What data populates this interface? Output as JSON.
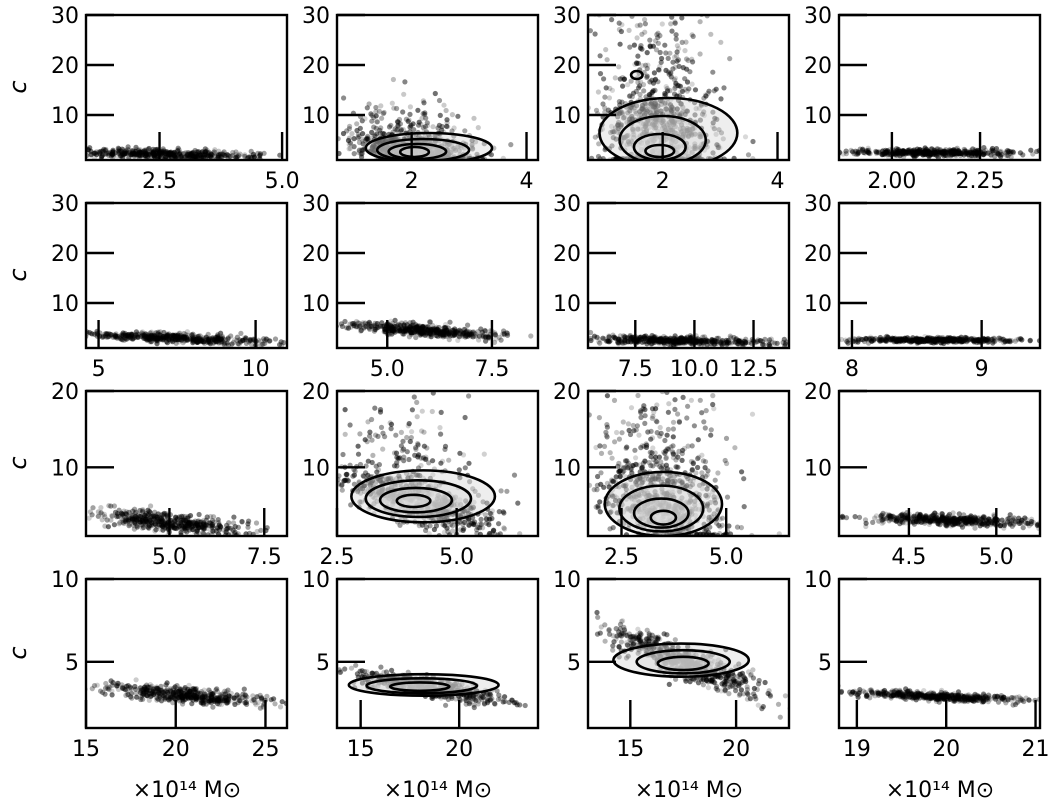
{
  "chart_data": {
    "type": "scatter",
    "y_axis_label": "c",
    "x_axis_label": "×10¹⁴ M⊙",
    "panels": [
      {
        "row": 0,
        "col": 0,
        "xlim": [
          1.0,
          5.1
        ],
        "ylim": [
          1,
          30
        ],
        "xticks": [
          2.5,
          5.0
        ],
        "xtick_labels": [
          "2.5",
          "5.0"
        ],
        "yticks": [
          10,
          20,
          30
        ],
        "ytick_labels": [
          "10",
          "20",
          "30"
        ],
        "cloud": {
          "n": 450,
          "xc": 2.4,
          "sx": 1.0,
          "yc": 2.2,
          "sy": 0.5,
          "tilt": -0.15,
          "tail": 0,
          "tailStart": 0
        }
      },
      {
        "row": 0,
        "col": 1,
        "xlim": [
          0.7,
          4.2
        ],
        "ylim": [
          1,
          30
        ],
        "xticks": [
          2,
          4
        ],
        "xtick_labels": [
          "2",
          "4"
        ],
        "yticks": [
          10,
          20,
          30
        ],
        "ytick_labels": [
          "10",
          "20",
          "30"
        ],
        "cloud": {
          "n": 750,
          "xc": 2.0,
          "sx": 0.55,
          "yc": 2.8,
          "sy": 1.3,
          "tilt": -1.2,
          "tail": 0.25,
          "tailStart": 1.3
        },
        "contours": [
          {
            "cx": 2.05,
            "cy": 2.6,
            "rx": 0.25,
            "ry": 1.0
          },
          {
            "cx": 2.1,
            "cy": 2.7,
            "rx": 0.5,
            "ry": 1.5
          },
          {
            "cx": 2.2,
            "cy": 3.0,
            "rx": 0.8,
            "ry": 2.2
          },
          {
            "cx": 2.3,
            "cy": 3.4,
            "rx": 1.1,
            "ry": 3.0
          }
        ]
      },
      {
        "row": 0,
        "col": 2,
        "xlim": [
          0.7,
          4.2
        ],
        "ylim": [
          1,
          30
        ],
        "xticks": [
          2,
          4
        ],
        "xtick_labels": [
          "2",
          "4"
        ],
        "yticks": [
          10,
          20,
          30
        ],
        "ytick_labels": [
          "10",
          "20",
          "30"
        ],
        "cloud": {
          "n": 850,
          "xc": 1.9,
          "sx": 0.55,
          "yc": 6.0,
          "sy": 5.0,
          "tilt": -2.0,
          "tail": 0.35,
          "tailStart": 1.2
        },
        "contours": [
          {
            "cx": 1.95,
            "cy": 2.8,
            "rx": 0.25,
            "ry": 1.2
          },
          {
            "cx": 1.95,
            "cy": 3.6,
            "rx": 0.45,
            "ry": 2.6
          },
          {
            "cx": 2.0,
            "cy": 5.0,
            "rx": 0.75,
            "ry": 4.8
          },
          {
            "cx": 2.1,
            "cy": 6.4,
            "rx": 1.2,
            "ry": 7.0
          },
          {
            "cx": 1.55,
            "cy": 18.0,
            "rx": 0.1,
            "ry": 0.8
          }
        ]
      },
      {
        "row": 0,
        "col": 3,
        "xlim": [
          1.85,
          2.42
        ],
        "ylim": [
          1,
          30
        ],
        "xticks": [
          2.0,
          2.25
        ],
        "xtick_labels": [
          "2.00",
          "2.25"
        ],
        "yticks": [
          10,
          20,
          30
        ],
        "ytick_labels": [
          "10",
          "20",
          "30"
        ],
        "cloud": {
          "n": 450,
          "xc": 2.12,
          "sx": 0.12,
          "yc": 2.5,
          "sy": 0.35,
          "tilt": 0,
          "tail": 0,
          "tailStart": 0
        }
      },
      {
        "row": 1,
        "col": 0,
        "xlim": [
          4.6,
          11.0
        ],
        "ylim": [
          1,
          30
        ],
        "xticks": [
          5,
          10
        ],
        "xtick_labels": [
          "5",
          "10"
        ],
        "yticks": [
          10,
          20,
          30
        ],
        "ytick_labels": [
          "10",
          "20",
          "30"
        ],
        "cloud": {
          "n": 450,
          "xc": 7.4,
          "sx": 1.5,
          "yc": 3.0,
          "sy": 0.45,
          "tilt": -0.25,
          "tail": 0,
          "tailStart": 0
        }
      },
      {
        "row": 1,
        "col": 1,
        "xlim": [
          3.8,
          8.6
        ],
        "ylim": [
          1,
          30
        ],
        "xticks": [
          5.0,
          7.5
        ],
        "xtick_labels": [
          "5.0",
          "7.5"
        ],
        "yticks": [
          10,
          20,
          30
        ],
        "ytick_labels": [
          "10",
          "20",
          "30"
        ],
        "cloud": {
          "n": 450,
          "xc": 5.9,
          "sx": 0.9,
          "yc": 4.5,
          "sy": 0.6,
          "tilt": -0.55,
          "tail": 0,
          "tailStart": 0
        }
      },
      {
        "row": 1,
        "col": 2,
        "xlim": [
          5.5,
          14.0
        ],
        "ylim": [
          1,
          30
        ],
        "xticks": [
          7.5,
          10.0,
          12.5
        ],
        "xtick_labels": [
          "7.5",
          "10.0",
          "12.5"
        ],
        "yticks": [
          10,
          20,
          30
        ],
        "ytick_labels": [
          "10",
          "20",
          "30"
        ],
        "cloud": {
          "n": 450,
          "xc": 9.2,
          "sx": 2.0,
          "yc": 2.5,
          "sy": 0.4,
          "tilt": -0.1,
          "tail": 0,
          "tailStart": 0
        }
      },
      {
        "row": 1,
        "col": 3,
        "xlim": [
          7.9,
          9.45
        ],
        "ylim": [
          1,
          30
        ],
        "xticks": [
          8,
          9
        ],
        "xtick_labels": [
          "8",
          "9"
        ],
        "yticks": [
          10,
          20,
          30
        ],
        "ytick_labels": [
          "10",
          "20",
          "30"
        ],
        "cloud": {
          "n": 450,
          "xc": 8.65,
          "sx": 0.32,
          "yc": 2.6,
          "sy": 0.25,
          "tilt": 0,
          "tail": 0,
          "tailStart": 0
        }
      },
      {
        "row": 2,
        "col": 0,
        "xlim": [
          2.8,
          8.1
        ],
        "ylim": [
          1,
          20
        ],
        "xticks": [
          5.0,
          7.5
        ],
        "xtick_labels": [
          "5.0",
          "7.5"
        ],
        "yticks": [
          10,
          20
        ],
        "ytick_labels": [
          "10",
          "20"
        ],
        "cloud": {
          "n": 450,
          "xc": 5.0,
          "sx": 1.0,
          "yc": 2.8,
          "sy": 0.6,
          "tilt": -0.5,
          "tail": 0,
          "tailStart": 0
        }
      },
      {
        "row": 2,
        "col": 1,
        "xlim": [
          2.5,
          6.7
        ],
        "ylim": [
          1,
          20
        ],
        "xticks": [
          2.5,
          5.0
        ],
        "xtick_labels": [
          "2.5",
          "5.0"
        ],
        "yticks": [
          10,
          20
        ],
        "ytick_labels": [
          "10",
          "20"
        ],
        "cloud": {
          "n": 700,
          "xc": 4.2,
          "sx": 0.8,
          "yc": 5.5,
          "sy": 1.5,
          "tilt": -1.8,
          "tail": 0.15,
          "tailStart": 3.3
        },
        "contours": [
          {
            "cx": 4.1,
            "cy": 5.6,
            "rx": 0.35,
            "ry": 0.8
          },
          {
            "cx": 4.15,
            "cy": 5.7,
            "rx": 0.75,
            "ry": 1.6
          },
          {
            "cx": 4.2,
            "cy": 5.9,
            "rx": 1.1,
            "ry": 2.4
          },
          {
            "cx": 4.3,
            "cy": 6.2,
            "rx": 1.5,
            "ry": 3.4
          }
        ]
      },
      {
        "row": 2,
        "col": 2,
        "xlim": [
          1.7,
          6.5
        ],
        "ylim": [
          1,
          20
        ],
        "xticks": [
          2.5,
          5.0
        ],
        "xtick_labels": [
          "2.5",
          "5.0"
        ],
        "yticks": [
          10,
          20
        ],
        "ytick_labels": [
          "10",
          "20"
        ],
        "cloud": {
          "n": 800,
          "xc": 3.5,
          "sx": 0.8,
          "yc": 4.5,
          "sy": 2.2,
          "tilt": -1.8,
          "tail": 0.3,
          "tailStart": 2.8
        },
        "contours": [
          {
            "cx": 3.5,
            "cy": 3.4,
            "rx": 0.3,
            "ry": 0.9
          },
          {
            "cx": 3.45,
            "cy": 4.0,
            "rx": 0.65,
            "ry": 1.9
          },
          {
            "cx": 3.45,
            "cy": 4.6,
            "rx": 1.0,
            "ry": 3.0
          },
          {
            "cx": 3.5,
            "cy": 5.2,
            "rx": 1.4,
            "ry": 4.2
          }
        ]
      },
      {
        "row": 2,
        "col": 3,
        "xlim": [
          4.1,
          5.25
        ],
        "ylim": [
          1,
          20
        ],
        "xticks": [
          4.5,
          5.0
        ],
        "xtick_labels": [
          "4.5",
          "5.0"
        ],
        "yticks": [
          10,
          20
        ],
        "ytick_labels": [
          "10",
          "20"
        ],
        "cloud": {
          "n": 450,
          "xc": 4.72,
          "sx": 0.26,
          "yc": 3.1,
          "sy": 0.35,
          "tilt": -0.8,
          "tail": 0,
          "tailStart": 0
        }
      },
      {
        "row": 3,
        "col": 0,
        "xlim": [
          15,
          26.2
        ],
        "ylim": [
          1,
          10
        ],
        "xticks": [
          15,
          20,
          25
        ],
        "xtick_labels": [
          "15",
          "20",
          "25"
        ],
        "yticks": [
          5,
          10
        ],
        "ytick_labels": [
          "5",
          "10"
        ],
        "cloud": {
          "n": 450,
          "xc": 20.5,
          "sx": 2.2,
          "yc": 3.0,
          "sy": 0.25,
          "tilt": -0.1,
          "tail": 0,
          "tailStart": 0
        }
      },
      {
        "row": 3,
        "col": 1,
        "xlim": [
          13.8,
          24.0
        ],
        "ylim": [
          1,
          10
        ],
        "xticks": [
          15,
          20
        ],
        "xtick_labels": [
          "15",
          "20"
        ],
        "yticks": [
          5,
          10
        ],
        "ytick_labels": [
          "5",
          "10"
        ],
        "cloud": {
          "n": 500,
          "xc": 18.3,
          "sx": 2.0,
          "yc": 3.5,
          "sy": 0.3,
          "tilt": -0.2,
          "tail": 0,
          "tailStart": 0
        },
        "contours": [
          {
            "cx": 18.0,
            "cy": 3.5,
            "rx": 1.5,
            "ry": 0.25
          },
          {
            "cx": 18.1,
            "cy": 3.55,
            "rx": 2.8,
            "ry": 0.45
          },
          {
            "cx": 18.2,
            "cy": 3.6,
            "rx": 3.8,
            "ry": 0.65
          }
        ]
      },
      {
        "row": 3,
        "col": 2,
        "xlim": [
          13.0,
          22.5
        ],
        "ylim": [
          1,
          10
        ],
        "xticks": [
          15,
          20
        ],
        "xtick_labels": [
          "15",
          "20"
        ],
        "yticks": [
          5,
          10
        ],
        "ytick_labels": [
          "5",
          "10"
        ],
        "cloud": {
          "n": 600,
          "xc": 17.5,
          "sx": 1.8,
          "yc": 5.0,
          "sy": 0.5,
          "tilt": -0.5,
          "tail": 0,
          "tailStart": 0
        },
        "contours": [
          {
            "cx": 17.5,
            "cy": 4.9,
            "rx": 1.2,
            "ry": 0.4
          },
          {
            "cx": 17.5,
            "cy": 5.0,
            "rx": 2.2,
            "ry": 0.7
          },
          {
            "cx": 17.4,
            "cy": 5.1,
            "rx": 3.2,
            "ry": 1.0
          }
        ]
      },
      {
        "row": 3,
        "col": 3,
        "xlim": [
          18.8,
          21.05
        ],
        "ylim": [
          1,
          10
        ],
        "xticks": [
          19,
          20,
          21
        ],
        "xtick_labels": [
          "19",
          "20",
          "21"
        ],
        "yticks": [
          5,
          10
        ],
        "ytick_labels": [
          "5",
          "10"
        ],
        "cloud": {
          "n": 450,
          "xc": 19.9,
          "sx": 0.5,
          "yc": 2.9,
          "sy": 0.12,
          "tilt": -0.25,
          "tail": 0,
          "tailStart": 0
        }
      }
    ]
  }
}
